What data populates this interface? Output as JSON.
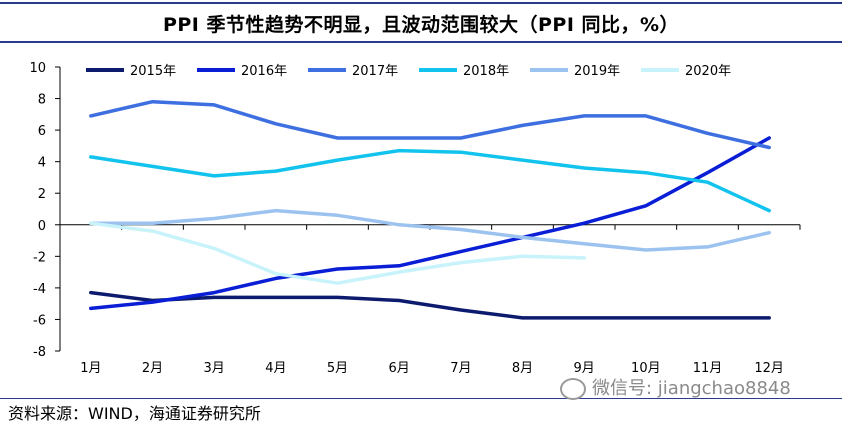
{
  "header": {
    "title": "PPI 季节性趋势不明显，且波动范围较大（PPI 同比，%）"
  },
  "footer": {
    "source": "资料来源：WIND，海通证券研究所",
    "watermark": "微信号: jiangchao8848"
  },
  "icons": {
    "watermark_icon": "wechat-icon"
  },
  "chart_data": {
    "type": "line",
    "title": "PPI 季节性趋势不明显，且波动范围较大（PPI 同比，%）",
    "xlabel": "",
    "ylabel": "",
    "categories": [
      "1月",
      "2月",
      "3月",
      "4月",
      "5月",
      "6月",
      "7月",
      "8月",
      "9月",
      "10月",
      "11月",
      "12月"
    ],
    "ylim": [
      -8,
      10
    ],
    "yticks": [
      -8,
      -6,
      -4,
      -2,
      0,
      2,
      4,
      6,
      8,
      10
    ],
    "grid": false,
    "legend_position": "top",
    "series": [
      {
        "name": "2015年",
        "color": "#0d1b6e",
        "values": [
          -4.3,
          -4.8,
          -4.6,
          -4.6,
          -4.6,
          -4.8,
          -5.4,
          -5.9,
          -5.9,
          -5.9,
          -5.9,
          -5.9
        ]
      },
      {
        "name": "2016年",
        "color": "#0a1ed6",
        "values": [
          -5.3,
          -4.9,
          -4.3,
          -3.4,
          -2.8,
          -2.6,
          -1.7,
          -0.8,
          0.1,
          1.2,
          3.3,
          5.5
        ]
      },
      {
        "name": "2017年",
        "color": "#3d6fe0",
        "values": [
          6.9,
          7.8,
          7.6,
          6.4,
          5.5,
          5.5,
          5.5,
          6.3,
          6.9,
          6.9,
          5.8,
          4.9
        ]
      },
      {
        "name": "2018年",
        "color": "#12c3ee",
        "values": [
          4.3,
          3.7,
          3.1,
          3.4,
          4.1,
          4.7,
          4.6,
          4.1,
          3.6,
          3.3,
          2.7,
          0.9
        ]
      },
      {
        "name": "2019年",
        "color": "#9cc3f0",
        "values": [
          0.1,
          0.1,
          0.4,
          0.9,
          0.6,
          0.0,
          -0.3,
          -0.8,
          -1.2,
          -1.6,
          -1.4,
          -0.5
        ]
      },
      {
        "name": "2020年",
        "color": "#c8f3fa",
        "values": [
          0.1,
          -0.4,
          -1.5,
          -3.1,
          -3.7,
          -3.0,
          -2.4,
          -2.0,
          -2.1,
          null,
          null,
          null
        ]
      }
    ]
  }
}
